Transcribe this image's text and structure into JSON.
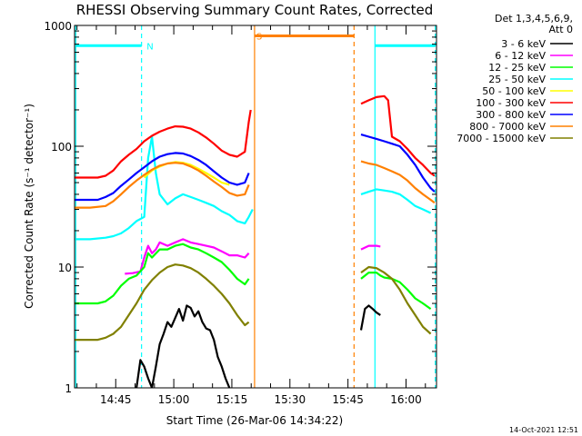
{
  "chart_data": {
    "type": "line",
    "title": "RHESSI Observing Summary Count Rates, Corrected",
    "xlabel": "Start Time (26-Mar-06 14:34:22)",
    "ylabel": "Corrected Count Rate (s⁻¹ detector⁻¹)",
    "y_scale": "log",
    "ylim": [
      1,
      1000
    ],
    "y_ticks": [
      {
        "value": 1,
        "label": "1"
      },
      {
        "value": 10,
        "label": "10"
      },
      {
        "value": 100,
        "label": "100"
      },
      {
        "value": 1000,
        "label": "1000"
      }
    ],
    "xlim_minutes_after_start": [
      0,
      93.5
    ],
    "x_ticks": [
      {
        "minutes": 10.63,
        "label": "14:45"
      },
      {
        "minutes": 25.63,
        "label": "15:00"
      },
      {
        "minutes": 40.63,
        "label": "15:15"
      },
      {
        "minutes": 55.63,
        "label": "15:30"
      },
      {
        "minutes": 70.63,
        "label": "15:45"
      },
      {
        "minutes": 85.63,
        "label": "16:00"
      }
    ],
    "legend": {
      "placement": "right",
      "header": [
        "Det 1,3,4,5,6,9,",
        "Att 0"
      ]
    },
    "series": [
      {
        "name": "3 - 6 keV",
        "color": "#000000",
        "points": [
          [
            16,
            1
          ],
          [
            17,
            1.7
          ],
          [
            18,
            1.5
          ],
          [
            19,
            1.2
          ],
          [
            20,
            1
          ],
          [
            21,
            1.5
          ],
          [
            22,
            2.3
          ],
          [
            23,
            2.8
          ],
          [
            24,
            3.5
          ],
          [
            25,
            3.2
          ],
          [
            26,
            3.8
          ],
          [
            27,
            4.5
          ],
          [
            28,
            3.6
          ],
          [
            29,
            4.8
          ],
          [
            30,
            4.6
          ],
          [
            31,
            3.9
          ],
          [
            32,
            4.3
          ],
          [
            33,
            3.5
          ],
          [
            34,
            3.1
          ],
          [
            35,
            3
          ],
          [
            36,
            2.5
          ],
          [
            37,
            1.8
          ],
          [
            38,
            1.5
          ],
          [
            39,
            1.2
          ],
          [
            40,
            1
          ]
        ],
        "seg2": [
          [
            74,
            3
          ],
          [
            75,
            4.5
          ],
          [
            76,
            4.8
          ],
          [
            77,
            4.5
          ],
          [
            78,
            4.2
          ],
          [
            79,
            4
          ]
        ]
      },
      {
        "name": "6 - 12 keV",
        "color": "#ff00ff",
        "points": [
          [
            13,
            8.8
          ],
          [
            15,
            8.9
          ],
          [
            17,
            9.2
          ],
          [
            18,
            12
          ],
          [
            19,
            15
          ],
          [
            20,
            13
          ],
          [
            21,
            14
          ],
          [
            22,
            16
          ],
          [
            24,
            15
          ],
          [
            26,
            16
          ],
          [
            28,
            17
          ],
          [
            30,
            16
          ],
          [
            32,
            15.5
          ],
          [
            34,
            15
          ],
          [
            36,
            14.5
          ],
          [
            38,
            13.5
          ],
          [
            40,
            12.5
          ],
          [
            42,
            12.5
          ],
          [
            44,
            12
          ],
          [
            45,
            13
          ]
        ],
        "seg2": [
          [
            74,
            14
          ],
          [
            76,
            15
          ],
          [
            78,
            15
          ],
          [
            79,
            14.8
          ]
        ]
      },
      {
        "name": "12 - 25 keV",
        "color": "#00ff00",
        "points": [
          [
            0,
            5
          ],
          [
            2,
            5
          ],
          [
            4,
            5
          ],
          [
            6,
            5
          ],
          [
            8,
            5.2
          ],
          [
            10,
            5.8
          ],
          [
            12,
            7
          ],
          [
            14,
            8
          ],
          [
            16,
            8.5
          ],
          [
            18,
            10
          ],
          [
            19,
            13
          ],
          [
            20,
            12
          ],
          [
            22,
            14
          ],
          [
            24,
            14
          ],
          [
            26,
            15
          ],
          [
            28,
            15.5
          ],
          [
            30,
            14.5
          ],
          [
            32,
            14
          ],
          [
            34,
            13
          ],
          [
            36,
            12
          ],
          [
            38,
            11
          ],
          [
            40,
            9.5
          ],
          [
            42,
            8
          ],
          [
            44,
            7.2
          ],
          [
            45,
            8
          ]
        ],
        "seg2": [
          [
            74,
            8
          ],
          [
            76,
            9
          ],
          [
            78,
            9
          ],
          [
            79,
            8.5
          ],
          [
            80,
            8.2
          ],
          [
            82,
            8
          ],
          [
            84,
            7.5
          ],
          [
            86,
            6.5
          ],
          [
            88,
            5.5
          ],
          [
            90,
            5
          ],
          [
            92,
            4.5
          ]
        ]
      },
      {
        "name": "25 - 50 keV",
        "color": "#00ffff",
        "points": [
          [
            0,
            17
          ],
          [
            4,
            17
          ],
          [
            8,
            17.5
          ],
          [
            10,
            18
          ],
          [
            12,
            19
          ],
          [
            14,
            21
          ],
          [
            16,
            24
          ],
          [
            18,
            26
          ],
          [
            19,
            80
          ],
          [
            20,
            120
          ],
          [
            21,
            60
          ],
          [
            22,
            40
          ],
          [
            24,
            33
          ],
          [
            26,
            37
          ],
          [
            28,
            40
          ],
          [
            30,
            38
          ],
          [
            32,
            36
          ],
          [
            34,
            34
          ],
          [
            36,
            32
          ],
          [
            38,
            29
          ],
          [
            40,
            27
          ],
          [
            42,
            24
          ],
          [
            44,
            23
          ],
          [
            45,
            26
          ],
          [
            46,
            30
          ]
        ],
        "seg2": [
          [
            74,
            40
          ],
          [
            76,
            42
          ],
          [
            78,
            44
          ],
          [
            80,
            43
          ],
          [
            82,
            42
          ],
          [
            84,
            40
          ],
          [
            86,
            36
          ],
          [
            88,
            32
          ],
          [
            90,
            30
          ],
          [
            92,
            28
          ]
        ]
      },
      {
        "name": "50 - 100 keV",
        "color": "#ffff00",
        "points": [
          [
            18,
            55
          ],
          [
            20,
            63
          ],
          [
            22,
            68
          ],
          [
            24,
            72
          ],
          [
            26,
            74
          ],
          [
            28,
            73
          ],
          [
            30,
            70
          ],
          [
            32,
            65
          ],
          [
            34,
            60
          ],
          [
            36,
            55
          ],
          [
            38,
            50
          ],
          [
            40,
            48
          ]
        ]
      },
      {
        "name": "100 - 300 keV",
        "color": "#ff0000",
        "points": [
          [
            0,
            55
          ],
          [
            2,
            55
          ],
          [
            4,
            55
          ],
          [
            6,
            55
          ],
          [
            8,
            57
          ],
          [
            10,
            63
          ],
          [
            12,
            75
          ],
          [
            14,
            85
          ],
          [
            16,
            95
          ],
          [
            18,
            110
          ],
          [
            20,
            122
          ],
          [
            22,
            132
          ],
          [
            24,
            140
          ],
          [
            26,
            146
          ],
          [
            28,
            145
          ],
          [
            30,
            140
          ],
          [
            32,
            130
          ],
          [
            34,
            118
          ],
          [
            36,
            105
          ],
          [
            38,
            92
          ],
          [
            40,
            85
          ],
          [
            42,
            82
          ],
          [
            44,
            90
          ],
          [
            45,
            160
          ],
          [
            45.5,
            200
          ]
        ],
        "seg2": [
          [
            74,
            225
          ],
          [
            76,
            240
          ],
          [
            78,
            255
          ],
          [
            80,
            260
          ],
          [
            81,
            240
          ],
          [
            82,
            120
          ],
          [
            84,
            110
          ],
          [
            86,
            95
          ],
          [
            88,
            80
          ],
          [
            90,
            70
          ],
          [
            92,
            60
          ],
          [
            93,
            57
          ]
        ]
      },
      {
        "name": "300 - 800 keV",
        "color": "#0000ff",
        "points": [
          [
            0,
            36
          ],
          [
            2,
            36
          ],
          [
            4,
            36
          ],
          [
            6,
            36
          ],
          [
            8,
            38
          ],
          [
            10,
            41
          ],
          [
            12,
            47
          ],
          [
            14,
            53
          ],
          [
            16,
            60
          ],
          [
            18,
            67
          ],
          [
            20,
            75
          ],
          [
            22,
            82
          ],
          [
            24,
            86
          ],
          [
            26,
            88
          ],
          [
            28,
            87
          ],
          [
            30,
            83
          ],
          [
            32,
            77
          ],
          [
            34,
            70
          ],
          [
            36,
            62
          ],
          [
            38,
            55
          ],
          [
            40,
            50
          ],
          [
            42,
            48
          ],
          [
            44,
            50
          ],
          [
            45,
            60
          ]
        ],
        "seg2": [
          [
            74,
            125
          ],
          [
            76,
            120
          ],
          [
            78,
            115
          ],
          [
            80,
            110
          ],
          [
            82,
            105
          ],
          [
            84,
            100
          ],
          [
            86,
            85
          ],
          [
            88,
            70
          ],
          [
            90,
            55
          ],
          [
            92,
            45
          ],
          [
            93,
            42
          ]
        ]
      },
      {
        "name": "800 - 7000 keV",
        "color": "#ff8000",
        "points": [
          [
            0,
            31
          ],
          [
            4,
            31
          ],
          [
            8,
            32
          ],
          [
            10,
            35
          ],
          [
            12,
            40
          ],
          [
            14,
            46
          ],
          [
            16,
            52
          ],
          [
            18,
            58
          ],
          [
            20,
            64
          ],
          [
            22,
            69
          ],
          [
            24,
            72
          ],
          [
            26,
            73
          ],
          [
            28,
            72
          ],
          [
            30,
            68
          ],
          [
            32,
            63
          ],
          [
            34,
            57
          ],
          [
            36,
            51
          ],
          [
            38,
            46
          ],
          [
            40,
            41
          ],
          [
            42,
            39
          ],
          [
            44,
            40
          ],
          [
            45,
            48
          ]
        ],
        "seg2": [
          [
            74,
            75
          ],
          [
            76,
            72
          ],
          [
            78,
            70
          ],
          [
            80,
            66
          ],
          [
            82,
            62
          ],
          [
            84,
            58
          ],
          [
            86,
            52
          ],
          [
            88,
            45
          ],
          [
            90,
            40
          ],
          [
            92,
            36
          ],
          [
            93,
            34
          ]
        ]
      },
      {
        "name": "7000 - 15000 keV",
        "color": "#808000",
        "points": [
          [
            0,
            2.5
          ],
          [
            2,
            2.5
          ],
          [
            4,
            2.5
          ],
          [
            6,
            2.5
          ],
          [
            8,
            2.6
          ],
          [
            10,
            2.8
          ],
          [
            12,
            3.2
          ],
          [
            14,
            4
          ],
          [
            16,
            5
          ],
          [
            18,
            6.5
          ],
          [
            20,
            7.8
          ],
          [
            22,
            9
          ],
          [
            24,
            10
          ],
          [
            26,
            10.5
          ],
          [
            28,
            10.3
          ],
          [
            30,
            9.8
          ],
          [
            32,
            9
          ],
          [
            34,
            8
          ],
          [
            36,
            7
          ],
          [
            38,
            6
          ],
          [
            40,
            5
          ],
          [
            42,
            4
          ],
          [
            44,
            3.3
          ],
          [
            45,
            3.5
          ]
        ],
        "seg2": [
          [
            74,
            9
          ],
          [
            76,
            10
          ],
          [
            78,
            9.8
          ],
          [
            80,
            9
          ],
          [
            82,
            8
          ],
          [
            84,
            6.5
          ],
          [
            86,
            5
          ],
          [
            88,
            4
          ],
          [
            90,
            3.2
          ],
          [
            92,
            2.8
          ]
        ]
      }
    ],
    "annotations": [
      {
        "type": "vline",
        "minutes": 0.3,
        "style": "solid",
        "color": "#00ffff"
      },
      {
        "type": "vline",
        "minutes": 17.3,
        "style": "dashed",
        "color": "#00ffff"
      },
      {
        "type": "vline",
        "minutes": 46.5,
        "style": "solid",
        "color": "#ff8000"
      },
      {
        "type": "vline",
        "minutes": 72.2,
        "style": "dashed",
        "color": "#ff8000"
      },
      {
        "type": "vline",
        "minutes": 77.6,
        "style": "solid",
        "color": "#00ffff"
      },
      {
        "type": "vline",
        "minutes": 93.2,
        "style": "dashed",
        "color": "#00ffff"
      },
      {
        "type": "hbar",
        "from_minutes": 0.3,
        "to_minutes": 17.3,
        "y": 680,
        "color": "#00ffff"
      },
      {
        "type": "hbar",
        "from_minutes": 77.6,
        "to_minutes": 93.2,
        "y": 680,
        "color": "#00ffff"
      },
      {
        "type": "hbar",
        "from_minutes": 46.5,
        "to_minutes": 72.2,
        "y": 820,
        "color": "#ff8000"
      },
      {
        "type": "label",
        "text": "N",
        "minutes": 19.5,
        "y": 680,
        "color": "#00ffff"
      },
      {
        "type": "label",
        "text": "S",
        "minutes": 47.7,
        "y": 820,
        "color": "#ff8000"
      }
    ],
    "timestamp": "14-Oct-2021 12:51"
  }
}
